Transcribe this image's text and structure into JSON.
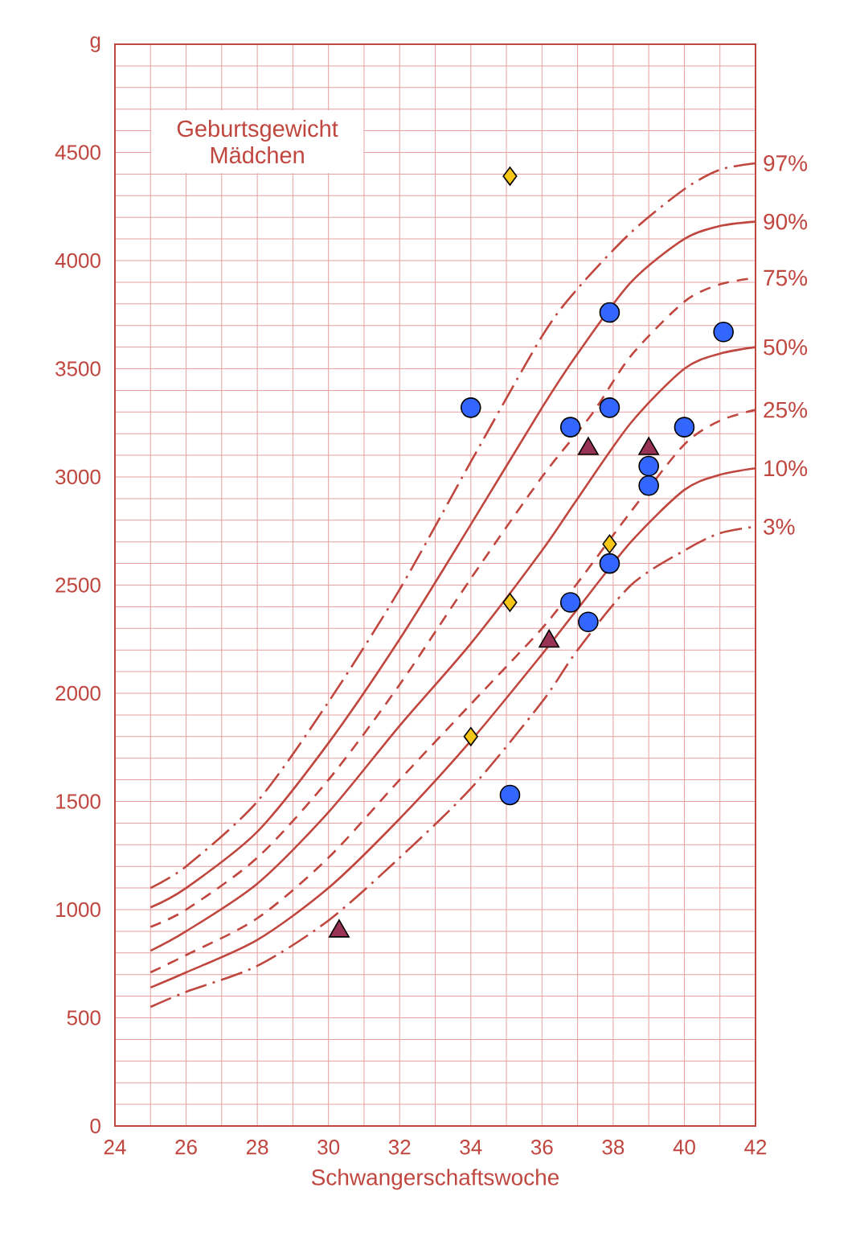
{
  "chart_data": {
    "type": "line",
    "title": "Geburtsgewicht Mädchen",
    "xlabel": "Schwangerschaftswoche",
    "xlim": [
      24,
      42
    ],
    "ylim": [
      0,
      5000
    ],
    "xticks": [
      24,
      {
        "value": 25,
        "label": null
      },
      26,
      {
        "value": 27,
        "label": null
      },
      28,
      {
        "value": 29,
        "label": null
      },
      30,
      {
        "value": 31,
        "label": null
      },
      32,
      {
        "value": 33,
        "label": null
      },
      34,
      {
        "value": 35,
        "label": null
      },
      36,
      {
        "value": 37,
        "label": null
      },
      38,
      {
        "value": 39,
        "label": null
      },
      40,
      {
        "value": 41,
        "label": null
      },
      42
    ],
    "yticks": [
      0,
      {
        "value": 100,
        "label": null
      },
      {
        "value": 200,
        "label": null
      },
      {
        "value": 300,
        "label": null
      },
      {
        "value": 400,
        "label": null
      },
      500,
      {
        "value": 600,
        "label": null
      },
      {
        "value": 700,
        "label": null
      },
      {
        "value": 800,
        "label": null
      },
      {
        "value": 900,
        "label": null
      },
      1000,
      {
        "value": 1100,
        "label": null
      },
      {
        "value": 1200,
        "label": null
      },
      {
        "value": 1300,
        "label": null
      },
      {
        "value": 1400,
        "label": null
      },
      1500,
      {
        "value": 1600,
        "label": null
      },
      {
        "value": 1700,
        "label": null
      },
      {
        "value": 1800,
        "label": null
      },
      {
        "value": 1900,
        "label": null
      },
      2000,
      {
        "value": 2100,
        "label": null
      },
      {
        "value": 2200,
        "label": null
      },
      {
        "value": 2300,
        "label": null
      },
      {
        "value": 2400,
        "label": null
      },
      2500,
      {
        "value": 2600,
        "label": null
      },
      {
        "value": 2700,
        "label": null
      },
      {
        "value": 2800,
        "label": null
      },
      {
        "value": 2900,
        "label": null
      },
      3000,
      {
        "value": 3100,
        "label": null
      },
      {
        "value": 3200,
        "label": null
      },
      {
        "value": 3300,
        "label": null
      },
      {
        "value": 3400,
        "label": null
      },
      3500,
      {
        "value": 3600,
        "label": null
      },
      {
        "value": 3700,
        "label": null
      },
      {
        "value": 3800,
        "label": null
      },
      {
        "value": 3900,
        "label": null
      },
      4000,
      {
        "value": 4100,
        "label": null
      },
      {
        "value": 4200,
        "label": null
      },
      {
        "value": 4300,
        "label": null
      },
      {
        "value": 4400,
        "label": null
      },
      4500,
      {
        "value": 4600,
        "label": null
      },
      {
        "value": 4700,
        "label": null
      },
      {
        "value": 4800,
        "label": null
      },
      {
        "value": 4900,
        "label": null
      },
      {
        "value": 5000,
        "label": "g"
      }
    ],
    "grid": true,
    "series": [
      {
        "name": "97%",
        "color": "#c0473f",
        "line_style": "dashdot",
        "x": [
          25,
          26,
          28,
          30,
          32,
          34,
          36,
          37,
          38.5,
          40,
          41,
          42
        ],
        "values": [
          1100,
          1200,
          1500,
          1960,
          2480,
          3070,
          3650,
          3870,
          4130,
          4330,
          4420,
          4450
        ]
      },
      {
        "name": "90%",
        "color": "#c0473f",
        "line_style": "solid",
        "x": [
          25,
          26,
          28,
          30,
          32,
          34,
          36,
          37,
          38.5,
          40,
          41,
          42
        ],
        "values": [
          1010,
          1100,
          1360,
          1770,
          2250,
          2780,
          3320,
          3570,
          3900,
          4100,
          4160,
          4180
        ]
      },
      {
        "name": "75%",
        "color": "#c0473f",
        "line_style": "dashed",
        "x": [
          25,
          26,
          28,
          30,
          32,
          34,
          36,
          37.4,
          38.5,
          40,
          41,
          42
        ],
        "values": [
          920,
          1000,
          1240,
          1600,
          2040,
          2530,
          3000,
          3290,
          3560,
          3810,
          3890,
          3920
        ]
      },
      {
        "name": "50%",
        "color": "#c0473f",
        "line_style": "solid",
        "x": [
          25,
          26,
          28,
          30,
          32,
          34,
          36,
          37,
          38.5,
          40,
          41,
          42
        ],
        "values": [
          810,
          900,
          1120,
          1450,
          1850,
          2230,
          2660,
          2900,
          3250,
          3500,
          3570,
          3600
        ]
      },
      {
        "name": "25%",
        "color": "#c0473f",
        "line_style": "dashed",
        "x": [
          25,
          26,
          28,
          30,
          32,
          34,
          36,
          37,
          38.5,
          40,
          41,
          42
        ],
        "values": [
          710,
          790,
          960,
          1240,
          1600,
          1950,
          2300,
          2510,
          2840,
          3150,
          3260,
          3310
        ]
      },
      {
        "name": "10%",
        "color": "#c0473f",
        "line_style": "solid",
        "x": [
          25,
          26,
          28,
          30,
          32,
          34,
          36,
          37,
          38.5,
          40,
          41,
          42
        ],
        "values": [
          640,
          710,
          860,
          1100,
          1420,
          1780,
          2180,
          2390,
          2700,
          2940,
          3010,
          3040
        ]
      },
      {
        "name": "3%",
        "color": "#c0473f",
        "line_style": "dashdot",
        "x": [
          25,
          26,
          28,
          30,
          32,
          34,
          36,
          37,
          38.5,
          40,
          41,
          42
        ],
        "values": [
          550,
          620,
          740,
          950,
          1240,
          1560,
          1960,
          2200,
          2500,
          2660,
          2740,
          2770
        ]
      },
      {
        "type": "scatter",
        "marker": "circle",
        "color": "#3366ff",
        "x": [
          34.0,
          35.1,
          36.8,
          36.8,
          37.3,
          37.9,
          37.9,
          37.9,
          39.0,
          39.0,
          40.0,
          41.1
        ],
        "values": [
          3320,
          1530,
          3230,
          2420,
          2330,
          3760,
          3320,
          2600,
          3050,
          2960,
          3230,
          3670
        ]
      },
      {
        "type": "scatter",
        "marker": "triangle",
        "color": "#993355",
        "x": [
          30.3,
          36.2,
          37.3,
          39.0
        ],
        "values": [
          900,
          2240,
          3130,
          3130
        ]
      },
      {
        "type": "scatter",
        "marker": "diamond",
        "color": "#f5c518",
        "x": [
          35.1,
          34.0,
          35.1,
          37.9
        ],
        "values": [
          4390,
          1800,
          2420,
          2690
        ]
      }
    ]
  }
}
